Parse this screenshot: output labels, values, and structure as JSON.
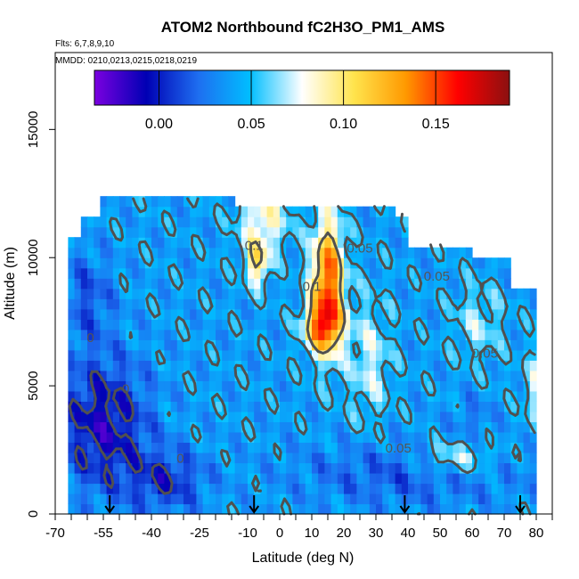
{
  "chart_data": {
    "type": "heatmap",
    "title": "ATOM2 Northbound fC2H3O_PM1_AMS",
    "subtitle_flights": "Flts: 6,7,8,9,10",
    "subtitle_dates": "MMDD: 0210,0213,0215,0218,0219",
    "xlabel": "Latitude (deg N)",
    "ylabel": "Altitude (m)",
    "xlim": [
      -70,
      85
    ],
    "ylim": [
      0,
      18000
    ],
    "x_ticks": [
      -70,
      -55,
      -40,
      -25,
      -10,
      0,
      10,
      20,
      30,
      40,
      50,
      60,
      70,
      80
    ],
    "y_ticks": [
      0,
      5000,
      10000,
      15000
    ],
    "colorbar": {
      "range": [
        -0.035,
        0.19
      ],
      "ticks": [
        0.0,
        0.05,
        0.1,
        0.15
      ],
      "tick_labels": [
        "0.00",
        "0.05",
        "0.10",
        "0.15"
      ],
      "colors": [
        "#7B00E0",
        "#0000B4",
        "#1E6EF0",
        "#00BEFF",
        "#FFFFFF",
        "#FFE44D",
        "#FF9900",
        "#FF0000",
        "#8B1010"
      ]
    },
    "contour_levels": [
      {
        "value": 0.0,
        "label": "0"
      },
      {
        "value": 0.05,
        "label": "0.05"
      },
      {
        "value": 0.1,
        "label": "0.1"
      }
    ],
    "flight_markers_lat": [
      -53,
      -8,
      39,
      75
    ],
    "grid": false,
    "legend": "colorbar-top"
  }
}
